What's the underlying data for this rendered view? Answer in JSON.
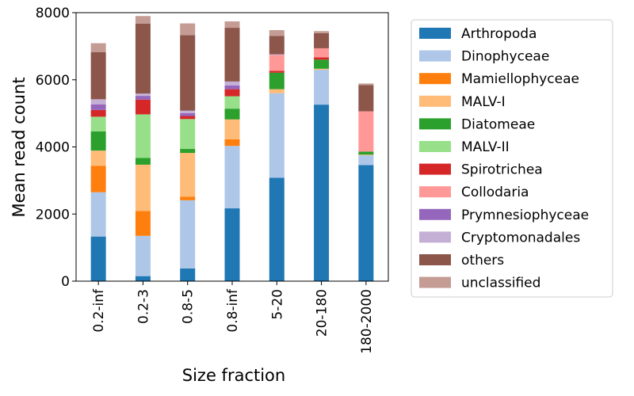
{
  "chart_data": {
    "type": "bar",
    "stacked": true,
    "xlabel": "Size fraction",
    "ylabel": "Mean read count",
    "ylim": [
      0,
      8000
    ],
    "yticks": [
      0,
      2000,
      4000,
      6000,
      8000
    ],
    "categories": [
      "0.2-inf",
      "0.2-3",
      "0.8-5",
      "0.8-inf",
      "5-20",
      "20-180",
      "180-2000"
    ],
    "legend_position": "outside-right",
    "series": [
      {
        "name": "Arthropoda",
        "color": "#1f77b4",
        "values": [
          1330,
          150,
          380,
          2170,
          3080,
          5260,
          3460
        ]
      },
      {
        "name": "Dinophyceae",
        "color": "#aec7e8",
        "values": [
          1320,
          1200,
          2030,
          1860,
          2520,
          1040,
          290
        ]
      },
      {
        "name": "Mamiellophyceae",
        "color": "#ff7f0e",
        "values": [
          790,
          740,
          110,
          200,
          0,
          0,
          0
        ]
      },
      {
        "name": "MALV-I",
        "color": "#ffbb78",
        "values": [
          450,
          1380,
          1300,
          590,
          120,
          30,
          20
        ]
      },
      {
        "name": "Diatomeae",
        "color": "#2ca02c",
        "values": [
          570,
          200,
          120,
          320,
          490,
          270,
          90
        ]
      },
      {
        "name": "MALV-II",
        "color": "#98df8a",
        "values": [
          440,
          1300,
          890,
          370,
          0,
          0,
          0
        ]
      },
      {
        "name": "Spirotrichea",
        "color": "#d62728",
        "values": [
          200,
          440,
          90,
          210,
          60,
          70,
          0
        ]
      },
      {
        "name": "Collodaria",
        "color": "#ff9896",
        "values": [
          0,
          0,
          0,
          0,
          470,
          270,
          1200
        ]
      },
      {
        "name": "Prymnesiophyceae",
        "color": "#9467bd",
        "values": [
          170,
          110,
          90,
          110,
          0,
          0,
          0
        ]
      },
      {
        "name": "Cryptomonadales",
        "color": "#c5b0d5",
        "values": [
          150,
          70,
          70,
          120,
          20,
          0,
          0
        ]
      },
      {
        "name": "others",
        "color": "#8c564b",
        "values": [
          1400,
          2080,
          2250,
          1600,
          550,
          450,
          780
        ]
      },
      {
        "name": "unclassified",
        "color": "#c49c94",
        "values": [
          270,
          230,
          350,
          190,
          170,
          60,
          50
        ]
      }
    ]
  }
}
